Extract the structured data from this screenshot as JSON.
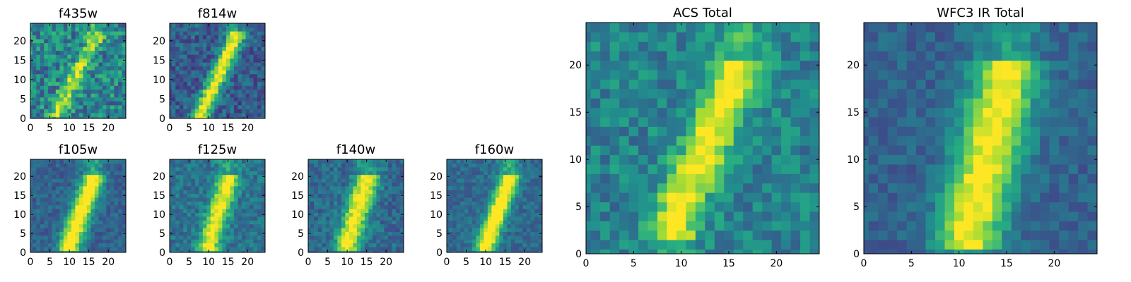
{
  "chart_data": [
    {
      "type": "heatmap",
      "title": "f435w",
      "xlim": [
        0,
        24
      ],
      "ylim": [
        0,
        24
      ],
      "xticks": [
        "0",
        "5",
        "10",
        "15",
        "20"
      ],
      "yticks": [
        "0",
        "5",
        "10",
        "15",
        "20"
      ],
      "colormap": "viridis",
      "feature": {
        "x0": 7,
        "x1": 17,
        "y0": 2,
        "y1": 21,
        "width": 1.6,
        "strength": 0.45,
        "noise": 0.45,
        "base": 0.45,
        "seed": 11
      }
    },
    {
      "type": "heatmap",
      "title": "f814w",
      "xlim": [
        0,
        24
      ],
      "ylim": [
        0,
        24
      ],
      "xticks": [
        "0",
        "5",
        "10",
        "15",
        "20"
      ],
      "yticks": [
        "0",
        "5",
        "10",
        "15",
        "20"
      ],
      "colormap": "viridis",
      "feature": {
        "x0": 8,
        "x1": 17,
        "y0": 1,
        "y1": 21,
        "width": 1.6,
        "strength": 0.75,
        "noise": 0.3,
        "base": 0.3,
        "seed": 23
      }
    },
    {
      "type": "heatmap",
      "title": "f105w",
      "xlim": [
        0,
        24
      ],
      "ylim": [
        0,
        24
      ],
      "xticks": [
        "0",
        "5",
        "10",
        "15",
        "20"
      ],
      "yticks": [
        "0",
        "5",
        "10",
        "15",
        "20"
      ],
      "colormap": "viridis",
      "feature": {
        "x0": 10,
        "x1": 16,
        "y0": 2,
        "y1": 19,
        "width": 2.0,
        "strength": 0.8,
        "noise": 0.2,
        "base": 0.32,
        "seed": 37
      }
    },
    {
      "type": "heatmap",
      "title": "f125w",
      "xlim": [
        0,
        24
      ],
      "ylim": [
        0,
        24
      ],
      "xticks": [
        "0",
        "5",
        "10",
        "15",
        "20"
      ],
      "yticks": [
        "0",
        "5",
        "10",
        "15",
        "20"
      ],
      "colormap": "viridis",
      "feature": {
        "x0": 10,
        "x1": 15,
        "y0": 2,
        "y1": 19,
        "width": 2.0,
        "strength": 0.65,
        "noise": 0.25,
        "base": 0.38,
        "seed": 41
      }
    },
    {
      "type": "heatmap",
      "title": "f140w",
      "xlim": [
        0,
        24
      ],
      "ylim": [
        0,
        24
      ],
      "xticks": [
        "0",
        "5",
        "10",
        "15",
        "20"
      ],
      "yticks": [
        "0",
        "5",
        "10",
        "15",
        "20"
      ],
      "colormap": "viridis",
      "feature": {
        "x0": 10,
        "x1": 15,
        "y0": 2,
        "y1": 19,
        "width": 2.2,
        "strength": 0.7,
        "noise": 0.25,
        "base": 0.35,
        "seed": 53
      }
    },
    {
      "type": "heatmap",
      "title": "f160w",
      "xlim": [
        0,
        24
      ],
      "ylim": [
        0,
        24
      ],
      "xticks": [
        "0",
        "5",
        "10",
        "15",
        "20"
      ],
      "yticks": [
        "0",
        "5",
        "10",
        "15",
        "20"
      ],
      "colormap": "viridis",
      "feature": {
        "x0": 10,
        "x1": 16,
        "y0": 2,
        "y1": 19,
        "width": 1.8,
        "strength": 0.8,
        "noise": 0.2,
        "base": 0.35,
        "seed": 67
      }
    },
    {
      "type": "heatmap",
      "title": "ACS Total",
      "xlim": [
        0,
        24
      ],
      "ylim": [
        0,
        24
      ],
      "xticks": [
        "0",
        "5",
        "10",
        "15",
        "20"
      ],
      "yticks": [
        "0",
        "5",
        "10",
        "15",
        "20"
      ],
      "colormap": "viridis",
      "feature": {
        "x0": 9,
        "x1": 16,
        "y0": 3,
        "y1": 19,
        "width": 1.8,
        "strength": 0.6,
        "noise": 0.3,
        "base": 0.45,
        "seed": 79
      }
    },
    {
      "type": "heatmap",
      "title": "WFC3 IR Total",
      "xlim": [
        0,
        24
      ],
      "ylim": [
        0,
        24
      ],
      "xticks": [
        "0",
        "5",
        "10",
        "15",
        "20"
      ],
      "yticks": [
        "0",
        "5",
        "10",
        "15",
        "20"
      ],
      "colormap": "viridis",
      "feature": {
        "x0": 11,
        "x1": 15,
        "y0": 2,
        "y1": 19,
        "width": 2.4,
        "strength": 0.7,
        "noise": 0.18,
        "base": 0.32,
        "seed": 97
      }
    }
  ]
}
